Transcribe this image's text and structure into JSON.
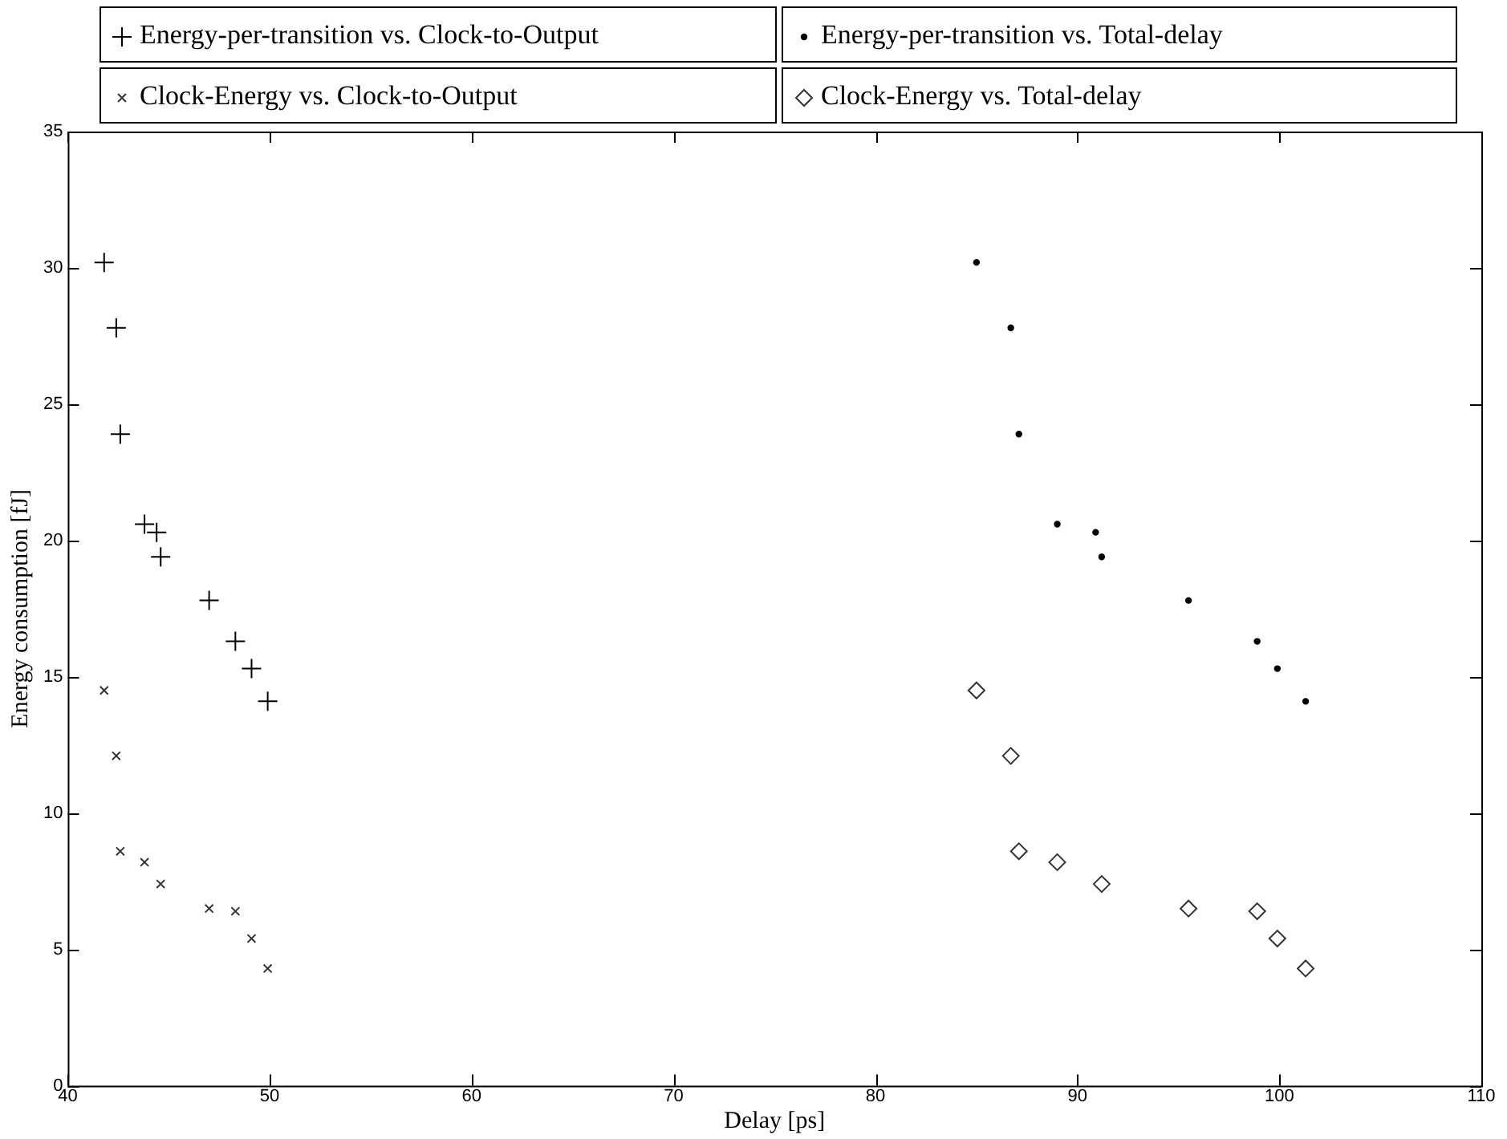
{
  "chart_data": {
    "type": "scatter",
    "xlabel": "Delay [ps]",
    "ylabel": "Energy consumption [fJ]",
    "xlim": [
      40,
      110
    ],
    "xticks": [
      40,
      50,
      60,
      70,
      80,
      90,
      100,
      110
    ],
    "ylim": [
      0,
      35
    ],
    "yticks": [
      0,
      5,
      10,
      15,
      20,
      25,
      30,
      35
    ],
    "grid": false,
    "legend": "top",
    "series": [
      {
        "name": "Energy-per-transition vs. Clock-to-Output",
        "color": "#000000",
        "marker": "cross",
        "x": [
          41.8,
          42.4,
          42.6,
          43.8,
          44.4,
          44.6,
          47.0,
          48.3,
          49.1,
          49.9
        ],
        "values": [
          30.2,
          27.8,
          23.9,
          20.6,
          20.3,
          19.4,
          17.8,
          16.3,
          15.3,
          14.1
        ]
      },
      {
        "name": "Energy-per-transition vs. Total-delay",
        "color": "#000000",
        "marker": "circle",
        "x": [
          85.0,
          86.7,
          87.1,
          89.0,
          90.9,
          91.2,
          95.5,
          98.9,
          99.9,
          101.3
        ],
        "values": [
          30.2,
          27.8,
          23.9,
          20.6,
          20.3,
          19.4,
          17.8,
          16.3,
          15.3,
          14.1
        ]
      },
      {
        "name": "Clock-Energy vs. Clock-to-Output",
        "color": "#333333",
        "marker": "x",
        "x": [
          41.8,
          42.4,
          42.6,
          43.8,
          44.6,
          47.0,
          48.3,
          49.1,
          49.9
        ],
        "values": [
          14.5,
          12.1,
          8.6,
          8.2,
          7.4,
          6.5,
          6.4,
          5.4,
          4.3
        ]
      },
      {
        "name": "Clock-Energy vs. Total-delay",
        "color": "#333333",
        "marker": "diamond",
        "x": [
          85.0,
          86.7,
          87.1,
          89.0,
          91.2,
          95.5,
          98.9,
          99.9,
          101.3
        ],
        "values": [
          14.5,
          12.1,
          8.6,
          8.2,
          7.4,
          6.5,
          6.4,
          5.4,
          4.3
        ]
      }
    ]
  }
}
